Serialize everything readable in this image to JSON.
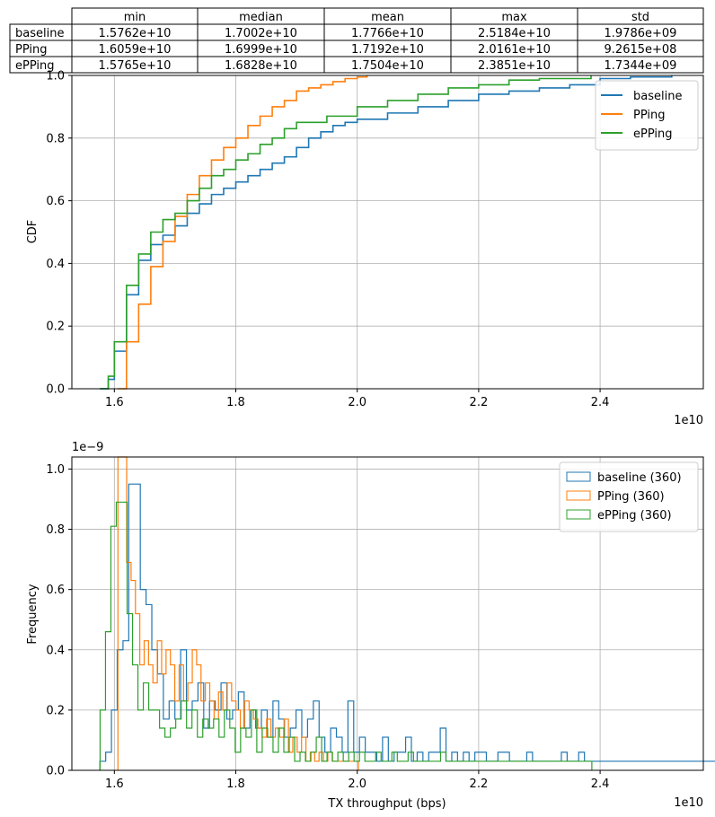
{
  "summary_table": {
    "columns": [
      "min",
      "median",
      "mean",
      "max",
      "std"
    ],
    "rows": [
      {
        "label": "baseline",
        "cells": [
          "1.5762e+10",
          "1.7002e+10",
          "1.7766e+10",
          "2.5184e+10",
          "1.9786e+09"
        ]
      },
      {
        "label": "PPing",
        "cells": [
          "1.6059e+10",
          "1.6999e+10",
          "1.7192e+10",
          "2.0161e+10",
          "9.2615e+08"
        ]
      },
      {
        "label": "ePPing",
        "cells": [
          "1.5765e+10",
          "1.6828e+10",
          "1.7504e+10",
          "2.3851e+10",
          "1.7344e+09"
        ]
      }
    ]
  },
  "colors": {
    "baseline": "#1f77b4",
    "PPing": "#ff7f0e",
    "ePPing": "#2ca02c",
    "grid": "#b0b0b0"
  },
  "chart_data": [
    {
      "type": "line",
      "title": "",
      "xlabel": "",
      "ylabel": "CDF",
      "x_offset_text": "1e10",
      "xlim": [
        1.53,
        2.57
      ],
      "ylim": [
        0,
        1.0
      ],
      "xticks": [
        1.6,
        1.8,
        2.0,
        2.2,
        2.4
      ],
      "xtick_labels": [
        "1.6",
        "1.8",
        "2.0",
        "2.2",
        "2.4"
      ],
      "yticks": [
        0,
        0.2,
        0.4,
        0.6,
        0.8,
        1.0
      ],
      "ytick_labels": [
        "0.0",
        "0.2",
        "0.4",
        "0.6",
        "0.8",
        "1.0"
      ],
      "grid": true,
      "legend": "top-right",
      "series": [
        {
          "name": "baseline",
          "x": [
            1.576,
            1.59,
            1.6,
            1.62,
            1.64,
            1.66,
            1.68,
            1.7,
            1.72,
            1.74,
            1.76,
            1.78,
            1.8,
            1.82,
            1.84,
            1.86,
            1.88,
            1.9,
            1.92,
            1.94,
            1.96,
            1.98,
            2.0,
            2.05,
            2.1,
            2.15,
            2.2,
            2.25,
            2.3,
            2.35,
            2.4,
            2.45,
            2.518
          ],
          "y": [
            0,
            0.03,
            0.12,
            0.3,
            0.41,
            0.46,
            0.49,
            0.52,
            0.56,
            0.59,
            0.62,
            0.64,
            0.66,
            0.68,
            0.7,
            0.72,
            0.74,
            0.77,
            0.8,
            0.82,
            0.84,
            0.85,
            0.86,
            0.88,
            0.9,
            0.92,
            0.94,
            0.95,
            0.96,
            0.97,
            0.99,
            0.995,
            1.0
          ]
        },
        {
          "name": "PPing",
          "x": [
            1.6059,
            1.62,
            1.64,
            1.66,
            1.68,
            1.7,
            1.72,
            1.74,
            1.76,
            1.78,
            1.8,
            1.82,
            1.84,
            1.86,
            1.88,
            1.9,
            1.92,
            1.94,
            1.96,
            1.98,
            2.0,
            2.0161
          ],
          "y": [
            0,
            0.15,
            0.27,
            0.39,
            0.47,
            0.55,
            0.62,
            0.68,
            0.73,
            0.77,
            0.8,
            0.84,
            0.87,
            0.9,
            0.92,
            0.95,
            0.96,
            0.97,
            0.98,
            0.99,
            0.995,
            1.0
          ]
        },
        {
          "name": "ePPing",
          "x": [
            1.5765,
            1.59,
            1.6,
            1.62,
            1.64,
            1.66,
            1.68,
            1.7,
            1.72,
            1.74,
            1.76,
            1.78,
            1.8,
            1.82,
            1.84,
            1.86,
            1.88,
            1.9,
            1.95,
            2.0,
            2.05,
            2.1,
            2.15,
            2.2,
            2.25,
            2.3,
            2.3851
          ],
          "y": [
            0,
            0.04,
            0.15,
            0.33,
            0.43,
            0.5,
            0.54,
            0.56,
            0.6,
            0.64,
            0.68,
            0.7,
            0.73,
            0.75,
            0.78,
            0.8,
            0.83,
            0.85,
            0.87,
            0.9,
            0.92,
            0.94,
            0.96,
            0.97,
            0.985,
            0.99,
            1.0
          ]
        }
      ]
    },
    {
      "type": "histogram",
      "title": "",
      "xlabel": "TX throughput (bps)",
      "ylabel": "Frequency",
      "x_offset_text": "1e10",
      "y_offset_text": "1e−9",
      "xlim": [
        1.53,
        2.57
      ],
      "ylim": [
        0,
        1.04
      ],
      "xticks": [
        1.6,
        1.8,
        2.0,
        2.2,
        2.4
      ],
      "xtick_labels": [
        "1.6",
        "1.8",
        "2.0",
        "2.2",
        "2.4"
      ],
      "yticks": [
        0,
        0.2,
        0.4,
        0.6,
        0.8,
        1.0
      ],
      "ytick_labels": [
        "0.0",
        "0.2",
        "0.4",
        "0.6",
        "0.8",
        "1.0"
      ],
      "grid": true,
      "legend": "top-right",
      "series": [
        {
          "name": "baseline (360)",
          "x_start": 1.5762,
          "bin_width": 0.0095,
          "values": [
            0.03,
            0.06,
            0.2,
            0.4,
            0.43,
            0.95,
            0.95,
            0.6,
            0.55,
            0.4,
            0.32,
            0.17,
            0.23,
            0.17,
            0.4,
            0.2,
            0.23,
            0.29,
            0.14,
            0.23,
            0.2,
            0.29,
            0.17,
            0.2,
            0.26,
            0.14,
            0.2,
            0.14,
            0.2,
            0.11,
            0.23,
            0.17,
            0.11,
            0.14,
            0.2,
            0.11,
            0.17,
            0.23,
            0.11,
            0.06,
            0.14,
            0.11,
            0.06,
            0.23,
            0.06,
            0.11,
            0.06,
            0.06,
            0.03,
            0.11,
            0.03,
            0.06,
            0.06,
            0.11,
            0.03,
            0.06,
            0.03,
            0.06,
            0.06,
            0.14,
            0.03,
            0.06,
            0.03,
            0.06,
            0.03,
            0.06,
            0.06,
            0.03,
            0.03,
            0.06,
            0.06,
            0.03,
            0.03,
            0.03,
            0.06,
            0.03,
            0.03,
            0.03,
            0.03,
            0.03,
            0.06,
            0.03,
            0.03,
            0.06,
            0.03,
            0.03,
            0.03,
            0.03,
            0.03,
            0.03,
            0.03,
            0.03,
            0.03,
            0.03,
            0.03,
            0.03,
            0.03,
            0.03,
            0.03,
            0.03,
            0.03,
            0.03,
            0.03,
            0.03,
            0.03,
            0.03,
            0.03,
            0.03,
            0.03,
            0.03,
            0.03,
            0.03,
            0.03,
            0.03,
            0.03,
            0.03,
            0.03,
            0.03,
            0.03,
            0.03,
            0.03,
            0.03,
            0.03,
            0.03,
            0.03,
            0.03,
            0.03,
            0.03,
            0.03,
            0.03,
            0.03,
            0.03,
            0.03,
            0.03,
            0.03,
            0.03,
            0.03,
            0.03,
            0.03,
            0.03,
            0.03,
            0.03,
            0.03,
            0.03,
            0.03,
            0.03,
            0.03,
            0.03,
            0.03,
            0.03,
            0.03,
            0.03,
            0.03,
            0.03,
            0.03,
            0.03,
            0.03,
            0.03,
            0.03,
            0.03,
            0.03,
            0.03,
            0.03,
            0.03,
            0.03,
            0.03,
            0.03,
            0.03,
            0.03,
            0.03,
            0.03,
            0.03,
            0.03,
            0.03,
            0.03,
            0.03,
            0.03,
            0.03,
            0.03,
            0.03,
            0.03,
            0.03,
            0.03
          ]
        },
        {
          "name": "PPing (360)",
          "x_start": 1.6059,
          "bin_width": 0.0072,
          "values": [
            1.04,
            1.04,
            0.69,
            0.63,
            0.52,
            0.35,
            0.43,
            0.35,
            0.29,
            0.43,
            0.32,
            0.4,
            0.35,
            0.23,
            0.35,
            0.23,
            0.29,
            0.4,
            0.35,
            0.23,
            0.29,
            0.23,
            0.17,
            0.26,
            0.2,
            0.29,
            0.23,
            0.2,
            0.14,
            0.23,
            0.2,
            0.17,
            0.14,
            0.11,
            0.17,
            0.11,
            0.14,
            0.11,
            0.17,
            0.06,
            0.11,
            0.06,
            0.11,
            0.03,
            0.06,
            0.03,
            0.06,
            0.03,
            0.06,
            0.03,
            0.03,
            0.03,
            0.03,
            0.03,
            0.03
          ]
        },
        {
          "name": "ePPing (360)",
          "x_start": 1.5765,
          "bin_width": 0.0089,
          "values": [
            0.2,
            0.46,
            0.81,
            0.89,
            0.89,
            0.52,
            0.35,
            0.2,
            0.29,
            0.2,
            0.2,
            0.14,
            0.11,
            0.14,
            0.17,
            0.23,
            0.14,
            0.2,
            0.11,
            0.17,
            0.14,
            0.17,
            0.11,
            0.2,
            0.14,
            0.06,
            0.14,
            0.11,
            0.2,
            0.06,
            0.14,
            0.11,
            0.06,
            0.14,
            0.06,
            0.11,
            0.03,
            0.06,
            0.03,
            0.06,
            0.11,
            0.03,
            0.06,
            0.03,
            0.06,
            0.03,
            0.06,
            0.03,
            0.06,
            0.03,
            0.03,
            0.06,
            0.03,
            0.03,
            0.06,
            0.03,
            0.03,
            0.06,
            0.03,
            0.03,
            0.03,
            0.03,
            0.03,
            0.06,
            0.03,
            0.03,
            0.03,
            0.03,
            0.03,
            0.03,
            0.03,
            0.03,
            0.03,
            0.03,
            0.03,
            0.03,
            0.03,
            0.03,
            0.03,
            0.03,
            0.03,
            0.03,
            0.03,
            0.03,
            0.03,
            0.03,
            0.03,
            0.03,
            0.03,
            0.03,
            0.03
          ]
        }
      ]
    }
  ]
}
